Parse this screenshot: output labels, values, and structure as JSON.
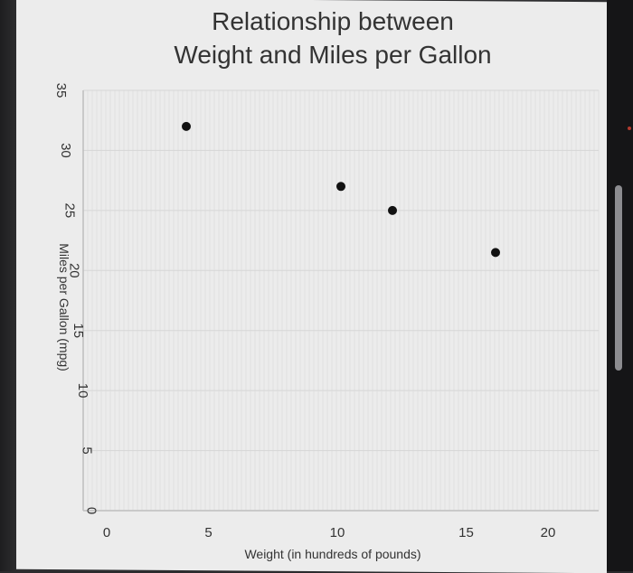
{
  "chart_data": {
    "type": "scatter",
    "title_lines": [
      "Relationship between",
      "Weight and Miles per Gallon"
    ],
    "xlabel": "Weight (in hundreds of pounds)",
    "ylabel": "Miles per Gallon (mpg)",
    "xlim": [
      0,
      20
    ],
    "ylim": [
      0,
      35
    ],
    "x_ticks": [
      "0",
      "5",
      "10",
      "15",
      "20"
    ],
    "y_ticks": [
      "0",
      "5",
      "10",
      "15",
      "20",
      "25",
      "30",
      "35"
    ],
    "grid": true,
    "points": [
      {
        "x": 4,
        "y": 32
      },
      {
        "x": 10,
        "y": 27
      },
      {
        "x": 12,
        "y": 25
      },
      {
        "x": 16,
        "y": 21.5
      }
    ],
    "colors": {
      "point": "#111111",
      "grid": "#d6d6d6",
      "background": "#ececec"
    }
  }
}
